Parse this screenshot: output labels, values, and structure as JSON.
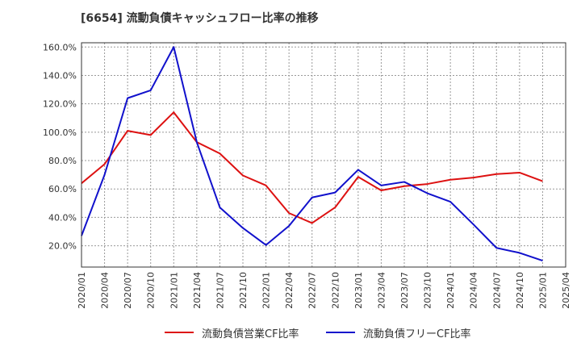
{
  "title": "[6654]  流動負債キャッシュフロー比率の推移",
  "chart_data": {
    "type": "line",
    "title": "[6654]  流動負債キャッシュフロー比率の推移",
    "xlabel": "",
    "ylabel": "",
    "x": [
      "2020/01",
      "2020/04",
      "2020/07",
      "2020/10",
      "2021/01",
      "2021/04",
      "2021/07",
      "2021/10",
      "2022/01",
      "2022/04",
      "2022/07",
      "2022/10",
      "2023/01",
      "2023/04",
      "2023/07",
      "2023/10",
      "2024/01",
      "2024/04",
      "2024/07",
      "2024/10",
      "2025/01",
      "2025/04"
    ],
    "x_tick_labels": [
      "2020/01",
      "2020/04",
      "2020/07",
      "2020/10",
      "2021/01",
      "2021/04",
      "2021/07",
      "2021/10",
      "2022/01",
      "2022/04",
      "2022/07",
      "2022/10",
      "2023/01",
      "2023/04",
      "2023/07",
      "2023/10",
      "2024/01",
      "2024/04",
      "2024/07",
      "2024/10",
      "2025/01",
      "2025/04"
    ],
    "y_ticks": [
      20,
      40,
      60,
      80,
      100,
      120,
      140,
      160
    ],
    "y_tick_labels": [
      "20.0%",
      "40.0%",
      "60.0%",
      "80.0%",
      "100.0%",
      "120.0%",
      "140.0%",
      "160.0%"
    ],
    "ylim": [
      5,
      163
    ],
    "grid": true,
    "legend_position": "bottom",
    "series": [
      {
        "name": "流動負債営業CF比率",
        "color": "#dd1111",
        "values": [
          64.0,
          77.5,
          101.0,
          98.0,
          114.0,
          93.0,
          85.0,
          69.5,
          62.5,
          43.0,
          36.0,
          47.0,
          68.5,
          59.0,
          62.0,
          63.5,
          66.5,
          68.0,
          70.5,
          71.5,
          65.5,
          null
        ]
      },
      {
        "name": "流動負債フリーCF比率",
        "color": "#1111cc",
        "values": [
          27.0,
          70.0,
          124.0,
          129.5,
          160.0,
          93.0,
          47.0,
          32.5,
          20.5,
          34.0,
          54.0,
          57.5,
          73.5,
          62.5,
          65.0,
          57.0,
          51.0,
          35.0,
          18.5,
          15.0,
          9.5,
          null
        ]
      }
    ]
  }
}
